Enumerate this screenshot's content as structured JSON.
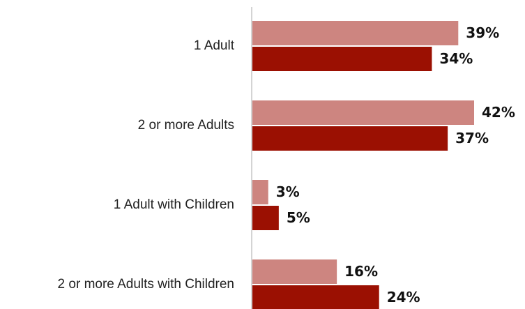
{
  "chart_data": {
    "type": "bar",
    "orientation": "horizontal",
    "categories": [
      "1 Adult",
      "2 or more Adults",
      "1 Adult with Children",
      "2 or more Adults with Children"
    ],
    "series": [
      {
        "values": [
          39,
          42,
          3,
          16
        ],
        "color": "#cd8580"
      },
      {
        "values": [
          34,
          37,
          5,
          24
        ],
        "color": "#9b1002"
      }
    ],
    "value_labels": [
      [
        "39%",
        "42%",
        "3%",
        "16%"
      ],
      [
        "34%",
        "37%",
        "5%",
        "24%"
      ]
    ],
    "xlim": [
      0,
      50
    ],
    "grid": false,
    "legend": "none",
    "axis_color": "#d4d4d4"
  }
}
